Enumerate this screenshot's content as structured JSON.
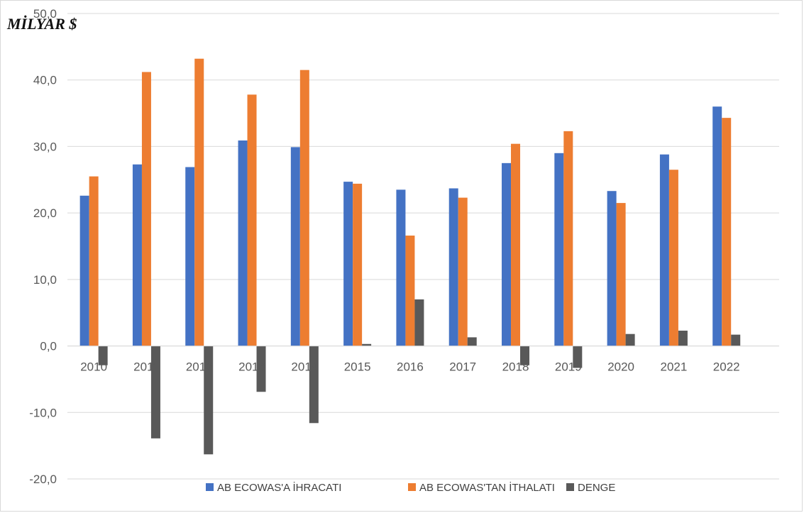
{
  "chart_data": {
    "type": "bar",
    "ylabel": "MİLYAR $",
    "ylim": [
      -20,
      50
    ],
    "yticks": [
      "-20,0",
      "-10,0",
      "0,0",
      "10,0",
      "20,0",
      "30,0",
      "40,0",
      "50,0"
    ],
    "grid": true,
    "legend_position": "bottom",
    "categories": [
      "2010",
      "2011",
      "2012",
      "2013",
      "2014",
      "2015",
      "2016",
      "2017",
      "2018",
      "2019",
      "2020",
      "2021",
      "2022"
    ],
    "series": [
      {
        "name": "AB ECOWAS'A İHRACATI",
        "color": "#4472c4",
        "values": [
          22.6,
          27.3,
          26.9,
          30.9,
          29.9,
          24.7,
          23.5,
          23.7,
          27.5,
          29.0,
          23.3,
          28.8,
          36.0
        ]
      },
      {
        "name": "AB ECOWAS'TAN İTHALATI",
        "color": "#ed7d31",
        "values": [
          25.5,
          41.2,
          43.2,
          37.8,
          41.5,
          24.4,
          16.6,
          22.3,
          30.4,
          32.3,
          21.5,
          26.5,
          34.3
        ]
      },
      {
        "name": "DENGE",
        "color": "#595959",
        "values": [
          -2.9,
          -13.9,
          -16.3,
          -6.9,
          -11.6,
          0.3,
          7.0,
          1.3,
          -2.9,
          -3.3,
          1.8,
          2.3,
          1.7
        ]
      }
    ]
  }
}
